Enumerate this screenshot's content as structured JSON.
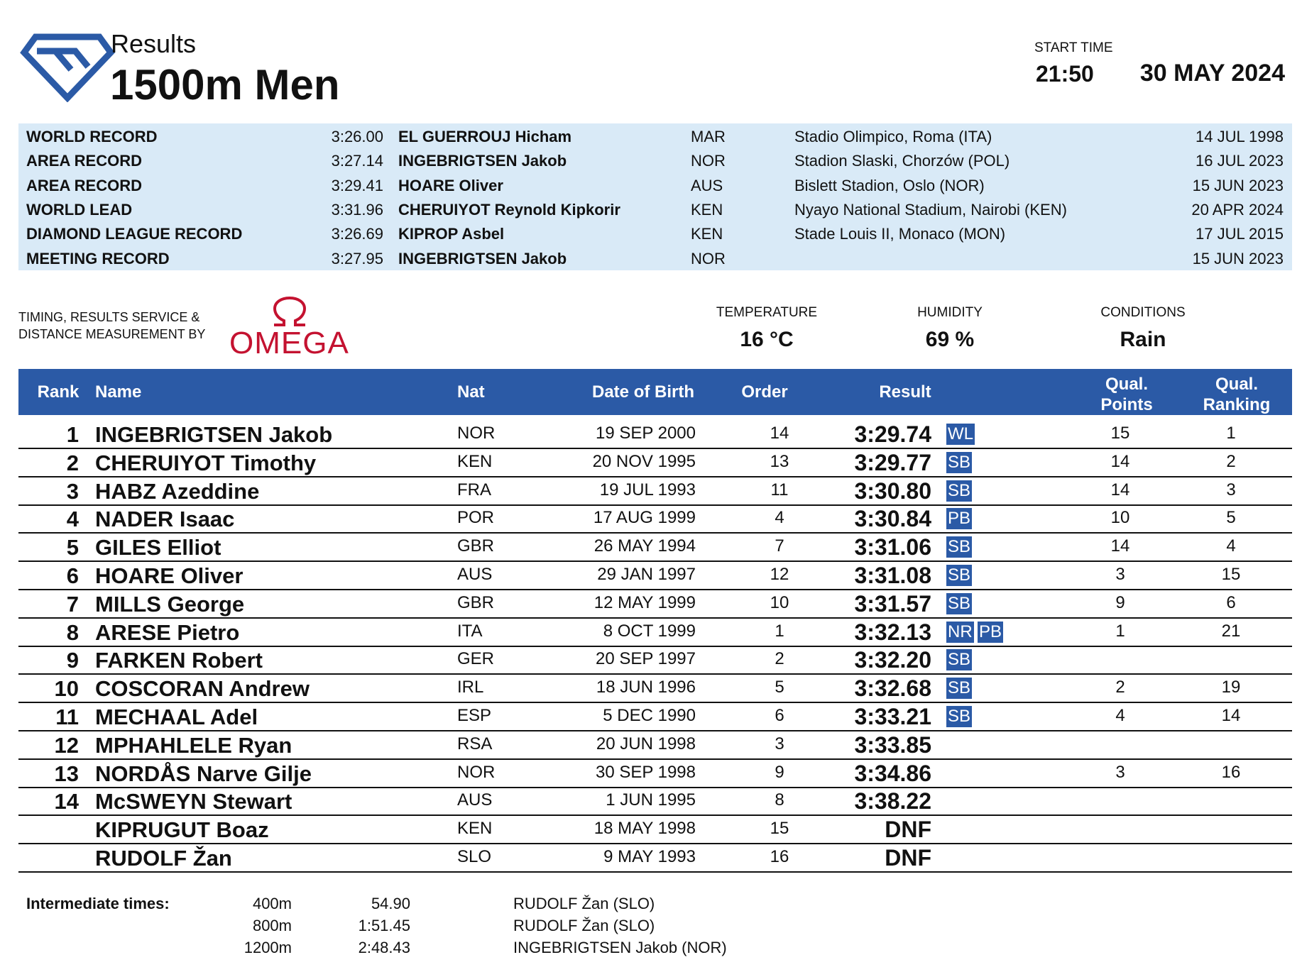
{
  "header": {
    "title": "Results",
    "event": "1500m Men",
    "start_time_label": "START TIME",
    "start_time": "21:50",
    "date": "30 MAY 2024"
  },
  "records": [
    {
      "label": "WORLD RECORD",
      "time": "3:26.00",
      "name": "EL GUERROUJ Hicham",
      "nat": "MAR",
      "venue": "Stadio Olimpico, Roma (ITA)",
      "date": "14 JUL 1998"
    },
    {
      "label": "AREA RECORD",
      "time": "3:27.14",
      "name": "INGEBRIGTSEN Jakob",
      "nat": "NOR",
      "venue": "Stadion Slaski, Chorzów (POL)",
      "date": "16 JUL 2023"
    },
    {
      "label": "AREA RECORD",
      "time": "3:29.41",
      "name": "HOARE Oliver",
      "nat": "AUS",
      "venue": "Bislett Stadion, Oslo (NOR)",
      "date": "15 JUN 2023"
    },
    {
      "label": "WORLD LEAD",
      "time": "3:31.96",
      "name": "CHERUIYOT Reynold Kipkorir",
      "nat": "KEN",
      "venue": "Nyayo National Stadium, Nairobi (KEN)",
      "date": "20 APR 2024"
    },
    {
      "label": "DIAMOND LEAGUE RECORD",
      "time": "3:26.69",
      "name": "KIPROP Asbel",
      "nat": "KEN",
      "venue": "Stade Louis II, Monaco (MON)",
      "date": "17 JUL 2015"
    },
    {
      "label": "MEETING RECORD",
      "time": "3:27.95",
      "name": "INGEBRIGTSEN Jakob",
      "nat": "NOR",
      "date": "15 JUN 2023"
    }
  ],
  "timing": {
    "lines": [
      "TIMING, RESULTS SERVICE &",
      "DISTANCE MEASUREMENT BY"
    ],
    "logo": "OMEGA"
  },
  "weather": [
    {
      "label": "TEMPERATURE",
      "value": "16 °C"
    },
    {
      "label": "HUMIDITY",
      "value": "69 %"
    },
    {
      "label": "CONDITIONS",
      "value": "Rain"
    }
  ],
  "table": {
    "headers": [
      "Rank",
      "Name",
      "Nat",
      "Date of Birth",
      "Order",
      "Result",
      "Qual. Points",
      "Qual. Ranking"
    ],
    "rows": [
      {
        "rank": 1,
        "name": "INGEBRIGTSEN Jakob",
        "nat": "NOR",
        "dob": "19 SEP 2000",
        "order": 14,
        "result": "3:29.74",
        "marks": [
          "WL"
        ],
        "points": 15,
        "ranking": 1
      },
      {
        "rank": 2,
        "name": "CHERUIYOT Timothy",
        "nat": "KEN",
        "dob": "20 NOV 1995",
        "order": 13,
        "result": "3:29.77",
        "marks": [
          "SB"
        ],
        "points": 14,
        "ranking": 2
      },
      {
        "rank": 3,
        "name": "HABZ Azeddine",
        "nat": "FRA",
        "dob": "19 JUL 1993",
        "order": 11,
        "result": "3:30.80",
        "marks": [
          "SB"
        ],
        "points": 14,
        "ranking": 3
      },
      {
        "rank": 4,
        "name": "NADER Isaac",
        "nat": "POR",
        "dob": "17 AUG 1999",
        "order": 4,
        "result": "3:30.84",
        "marks": [
          "PB"
        ],
        "points": 10,
        "ranking": 5
      },
      {
        "rank": 5,
        "name": "GILES Elliot",
        "nat": "GBR",
        "dob": "26 MAY 1994",
        "order": 7,
        "result": "3:31.06",
        "marks": [
          "SB"
        ],
        "points": 14,
        "ranking": 4
      },
      {
        "rank": 6,
        "name": "HOARE Oliver",
        "nat": "AUS",
        "dob": "29 JAN 1997",
        "order": 12,
        "result": "3:31.08",
        "marks": [
          "SB"
        ],
        "points": 3,
        "ranking": 15
      },
      {
        "rank": 7,
        "name": "MILLS George",
        "nat": "GBR",
        "dob": "12 MAY 1999",
        "order": 10,
        "result": "3:31.57",
        "marks": [
          "SB"
        ],
        "points": 9,
        "ranking": 6
      },
      {
        "rank": 8,
        "name": "ARESE Pietro",
        "nat": "ITA",
        "dob": "8 OCT 1999",
        "order": 1,
        "result": "3:32.13",
        "marks": [
          "NR",
          "PB"
        ],
        "points": 1,
        "ranking": 21
      },
      {
        "rank": 9,
        "name": "FARKEN Robert",
        "nat": "GER",
        "dob": "20 SEP 1997",
        "order": 2,
        "result": "3:32.20",
        "marks": [
          "SB"
        ]
      },
      {
        "rank": 10,
        "name": "COSCORAN Andrew",
        "nat": "IRL",
        "dob": "18 JUN 1996",
        "order": 5,
        "result": "3:32.68",
        "marks": [
          "SB"
        ],
        "points": 2,
        "ranking": 19
      },
      {
        "rank": 11,
        "name": "MECHAAL Adel",
        "nat": "ESP",
        "dob": "5 DEC 1990",
        "order": 6,
        "result": "3:33.21",
        "marks": [
          "SB"
        ],
        "points": 4,
        "ranking": 14
      },
      {
        "rank": 12,
        "name": "MPHAHLELE Ryan",
        "nat": "RSA",
        "dob": "20 JUN 1998",
        "order": 3,
        "result": "3:33.85"
      },
      {
        "rank": 13,
        "name": "NORDÅS Narve Gilje",
        "nat": "NOR",
        "dob": "30 SEP 1998",
        "order": 9,
        "result": "3:34.86",
        "points": 3,
        "ranking": 16
      },
      {
        "rank": 14,
        "name": "McSWEYN Stewart",
        "nat": "AUS",
        "dob": "1 JUN 1995",
        "order": 8,
        "result": "3:38.22"
      },
      {
        "name": "KIPRUGUT Boaz",
        "nat": "KEN",
        "dob": "18 MAY 1998",
        "order": 15,
        "result": "DNF"
      },
      {
        "name": "RUDOLF Žan",
        "nat": "SLO",
        "dob": "9 MAY 1993",
        "order": 16,
        "result": "DNF"
      }
    ]
  },
  "intermediate": {
    "label": "Intermediate times:",
    "rows": [
      {
        "distance": "400m",
        "time": "54.90",
        "leader": "RUDOLF Žan (SLO)"
      },
      {
        "distance": "800m",
        "time": "1:51.45",
        "leader": "RUDOLF Žan (SLO)"
      },
      {
        "distance": "1200m",
        "time": "2:48.43",
        "leader": "INGEBRIGTSEN Jakob (NOR)"
      }
    ]
  }
}
